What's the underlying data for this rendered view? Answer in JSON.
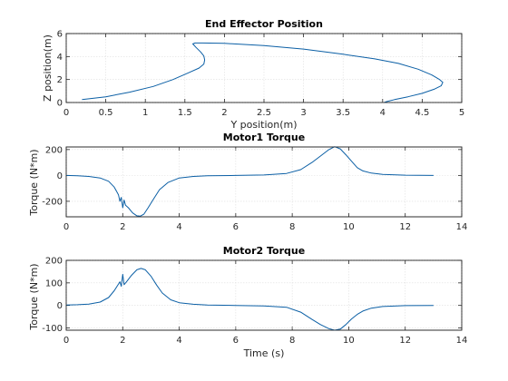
{
  "figure": {
    "background": "#ffffff",
    "line_color": "#0b5fa5",
    "grid": true
  },
  "chart_data": [
    {
      "type": "line",
      "title": "End Effector Position",
      "xlabel": "Y position(m)",
      "ylabel": "Z position(m)",
      "xlim": [
        0,
        5
      ],
      "ylim": [
        0,
        6
      ],
      "xticks": [
        "0",
        "0.5",
        "1",
        "1.5",
        "2",
        "2.5",
        "3",
        "3.5",
        "4",
        "4.5",
        "5"
      ],
      "yticks": [
        "0",
        "2",
        "4",
        "6"
      ],
      "series": [
        {
          "x": [
            0.2,
            0.5,
            0.8,
            1.1,
            1.35,
            1.55,
            1.68,
            1.74,
            1.75,
            1.74,
            1.7,
            1.64,
            1.6,
            1.63,
            1.72,
            2.0,
            2.5,
            3.0,
            3.5,
            3.9,
            4.2,
            4.45,
            4.62,
            4.72,
            4.76,
            4.74,
            4.65,
            4.5,
            4.32,
            4.15,
            4.05,
            4.02
          ],
          "y": [
            0.25,
            0.5,
            0.9,
            1.4,
            2.0,
            2.6,
            3.0,
            3.35,
            3.7,
            4.05,
            4.4,
            4.8,
            5.1,
            5.18,
            5.18,
            5.15,
            4.95,
            4.65,
            4.2,
            3.8,
            3.4,
            2.9,
            2.4,
            2.0,
            1.75,
            1.45,
            1.15,
            0.8,
            0.5,
            0.25,
            0.08,
            0.0
          ]
        }
      ]
    },
    {
      "type": "line",
      "title": "Motor1 Torque",
      "xlabel": "",
      "ylabel": "Torque (N*m)",
      "xlim": [
        0,
        14
      ],
      "ylim": [
        -320,
        220
      ],
      "xticks": [
        "0",
        "2",
        "4",
        "6",
        "8",
        "10",
        "12",
        "14"
      ],
      "yticks": [
        "-200",
        "0",
        "200"
      ],
      "series": [
        {
          "x": [
            0,
            0.4,
            0.8,
            1.2,
            1.5,
            1.7,
            1.85,
            1.9,
            1.95,
            2.0,
            2.05,
            2.1,
            2.2,
            2.35,
            2.5,
            2.62,
            2.75,
            2.9,
            3.1,
            3.3,
            3.6,
            4.0,
            4.5,
            5.0,
            6.0,
            7.0,
            7.8,
            8.3,
            8.7,
            9.0,
            9.3,
            9.5,
            9.7,
            9.9,
            10.1,
            10.3,
            10.5,
            10.8,
            11.2,
            12.0,
            13.0
          ],
          "y": [
            0,
            -3,
            -8,
            -20,
            -45,
            -90,
            -150,
            -200,
            -170,
            -250,
            -190,
            -230,
            -250,
            -290,
            -312,
            -315,
            -300,
            -250,
            -180,
            -110,
            -55,
            -20,
            -8,
            -3,
            0,
            3,
            15,
            45,
            100,
            150,
            200,
            222,
            205,
            160,
            110,
            60,
            35,
            18,
            8,
            2,
            0
          ]
        }
      ]
    },
    {
      "type": "line",
      "title": "Motor2 Torque",
      "xlabel": "Time (s)",
      "ylabel": "Torque (N*m)",
      "xlim": [
        0,
        14
      ],
      "ylim": [
        -110,
        200
      ],
      "xticks": [
        "0",
        "2",
        "4",
        "6",
        "8",
        "10",
        "12",
        "14"
      ],
      "yticks": [
        "-100",
        "0",
        "100",
        "200"
      ],
      "series": [
        {
          "x": [
            0,
            0.4,
            0.8,
            1.2,
            1.5,
            1.7,
            1.85,
            1.9,
            1.95,
            2.0,
            2.05,
            2.15,
            2.3,
            2.5,
            2.65,
            2.8,
            3.0,
            3.2,
            3.4,
            3.7,
            4.0,
            4.5,
            5.0,
            6.0,
            7.0,
            7.8,
            8.3,
            8.7,
            9.0,
            9.3,
            9.5,
            9.7,
            9.9,
            10.1,
            10.3,
            10.5,
            10.8,
            11.2,
            12.0,
            13.0
          ],
          "y": [
            2,
            3,
            6,
            15,
            35,
            65,
            95,
            105,
            85,
            138,
            92,
            108,
            132,
            158,
            164,
            158,
            130,
            90,
            55,
            25,
            12,
            5,
            2,
            0,
            -2,
            -8,
            -30,
            -62,
            -85,
            -103,
            -110,
            -105,
            -85,
            -60,
            -40,
            -25,
            -12,
            -5,
            -1,
            0
          ]
        }
      ]
    }
  ]
}
